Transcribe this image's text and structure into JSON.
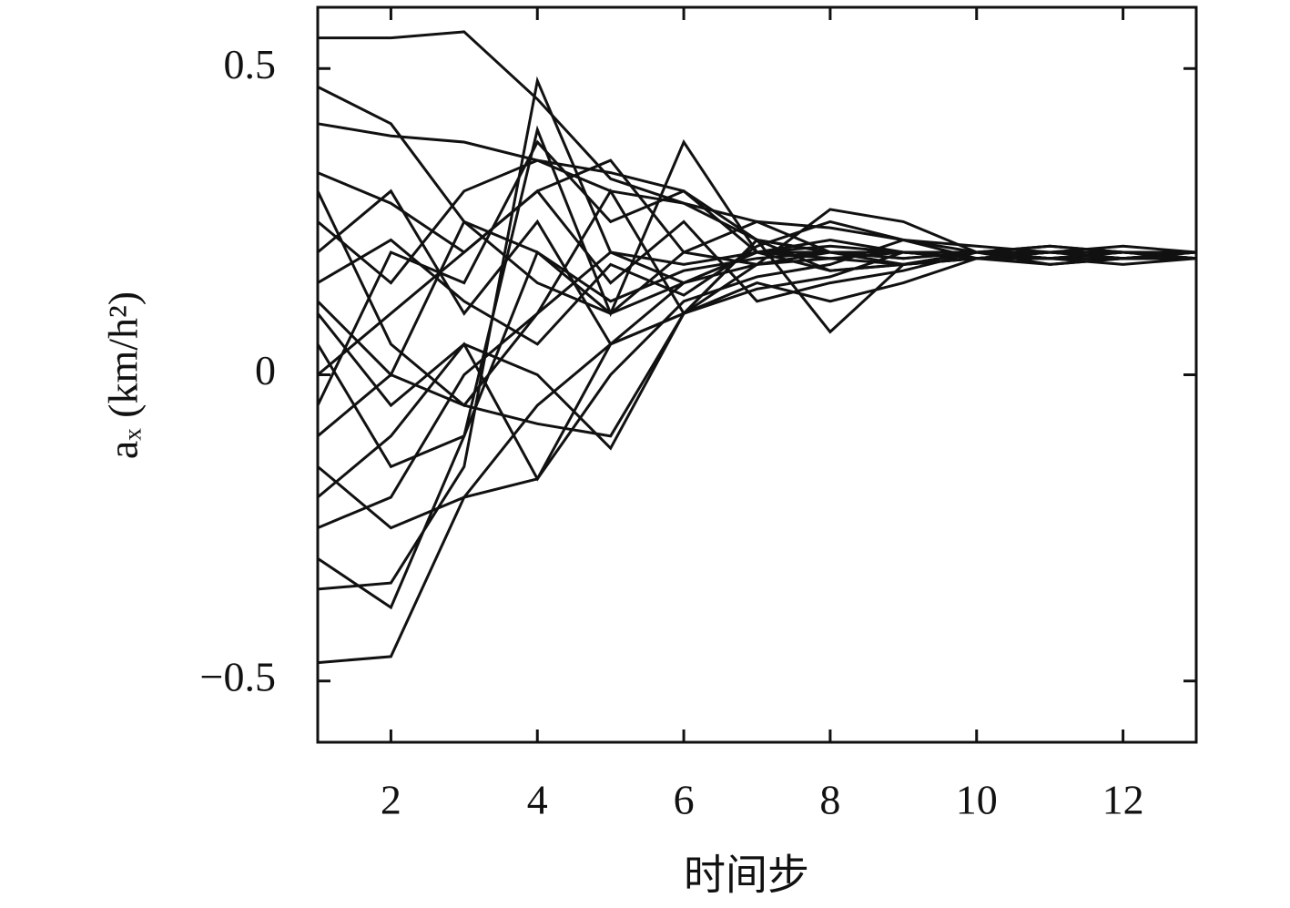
{
  "chart_data": {
    "type": "line",
    "xlabel": "时间步",
    "ylabel": "aₓ (km/h²)",
    "color": "#111111",
    "x": [
      1,
      2,
      3,
      4,
      5,
      6,
      7,
      8,
      9,
      10,
      11,
      12,
      13
    ],
    "xlim": [
      1,
      13
    ],
    "xticks": [
      2,
      4,
      6,
      8,
      10,
      12
    ],
    "ylim": [
      -0.6,
      0.6
    ],
    "yticks": [
      {
        "value": -0.5,
        "label": "−0.5"
      },
      0,
      0.5
    ],
    "series": [
      {
        "values": [
          0.55,
          0.55,
          0.56,
          0.45,
          0.32,
          0.28,
          0.22,
          0.2,
          0.2,
          0.19,
          0.19,
          0.19,
          0.19
        ]
      },
      {
        "values": [
          -0.47,
          -0.46,
          -0.2,
          -0.17,
          0.05,
          0.15,
          0.18,
          0.19,
          0.18,
          0.19,
          0.18,
          0.19,
          0.19
        ]
      },
      {
        "values": [
          0.47,
          0.41,
          0.25,
          0.15,
          0.1,
          0.15,
          0.2,
          0.22,
          0.2,
          0.2,
          0.19,
          0.19,
          0.2
        ]
      },
      {
        "values": [
          0.41,
          0.39,
          0.38,
          0.35,
          0.33,
          0.3,
          0.22,
          0.2,
          0.19,
          0.2,
          0.2,
          0.2,
          0.19
        ]
      },
      {
        "values": [
          -0.35,
          -0.34,
          -0.15,
          0.48,
          0.2,
          0.18,
          0.2,
          0.21,
          0.2,
          0.19,
          0.2,
          0.19,
          0.19
        ]
      },
      {
        "values": [
          -0.3,
          -0.38,
          -0.1,
          0.4,
          0.1,
          0.38,
          0.2,
          0.19,
          0.2,
          0.2,
          0.19,
          0.2,
          0.2
        ]
      },
      {
        "values": [
          0.1,
          -0.05,
          0.05,
          0.0,
          -0.12,
          0.1,
          0.22,
          0.07,
          0.18,
          0.19,
          0.2,
          0.2,
          0.2
        ]
      },
      {
        "values": [
          0.33,
          0.28,
          0.2,
          0.3,
          0.35,
          0.2,
          0.18,
          0.27,
          0.25,
          0.2,
          0.21,
          0.2,
          0.2
        ]
      },
      {
        "values": [
          0.0,
          0.1,
          0.2,
          0.3,
          0.15,
          0.25,
          0.12,
          0.15,
          0.17,
          0.2,
          0.2,
          0.21,
          0.2
        ]
      },
      {
        "values": [
          -0.2,
          -0.1,
          0.05,
          -0.17,
          0.0,
          0.12,
          0.16,
          0.18,
          0.22,
          0.19,
          0.19,
          0.19,
          0.19
        ]
      },
      {
        "values": [
          0.2,
          0.3,
          0.1,
          0.25,
          0.05,
          0.1,
          0.18,
          0.2,
          0.18,
          0.2,
          0.18,
          0.19,
          0.19
        ]
      },
      {
        "values": [
          -0.1,
          0.0,
          -0.05,
          -0.08,
          -0.1,
          0.1,
          0.15,
          0.12,
          0.15,
          0.19,
          0.19,
          0.18,
          0.19
        ]
      },
      {
        "values": [
          0.25,
          0.15,
          0.3,
          0.35,
          0.3,
          0.28,
          0.25,
          0.24,
          0.22,
          0.2,
          0.2,
          0.19,
          0.2
        ]
      },
      {
        "values": [
          0.05,
          -0.15,
          -0.1,
          0.2,
          0.12,
          0.17,
          0.19,
          0.2,
          0.2,
          0.19,
          0.2,
          0.2,
          0.2
        ]
      },
      {
        "values": [
          -0.25,
          -0.2,
          0.0,
          0.1,
          0.2,
          0.15,
          0.2,
          0.17,
          0.18,
          0.19,
          0.19,
          0.2,
          0.2
        ]
      },
      {
        "values": [
          0.15,
          0.22,
          0.12,
          0.05,
          0.18,
          0.13,
          0.21,
          0.25,
          0.22,
          0.21,
          0.2,
          0.2,
          0.19
        ]
      },
      {
        "values": [
          -0.05,
          0.2,
          0.15,
          0.38,
          0.25,
          0.3,
          0.2,
          0.2,
          0.2,
          0.2,
          0.2,
          0.2,
          0.2
        ]
      },
      {
        "values": [
          0.3,
          0.05,
          -0.05,
          0.1,
          0.3,
          0.1,
          0.22,
          0.17,
          0.18,
          0.2,
          0.19,
          0.2,
          0.2
        ]
      },
      {
        "values": [
          -0.15,
          -0.25,
          -0.2,
          -0.05,
          0.05,
          0.1,
          0.14,
          0.16,
          0.2,
          0.19,
          0.2,
          0.19,
          0.2
        ]
      },
      {
        "values": [
          0.12,
          0.0,
          0.25,
          0.2,
          0.1,
          0.2,
          0.25,
          0.2,
          0.19,
          0.2,
          0.21,
          0.2,
          0.19
        ]
      }
    ]
  }
}
